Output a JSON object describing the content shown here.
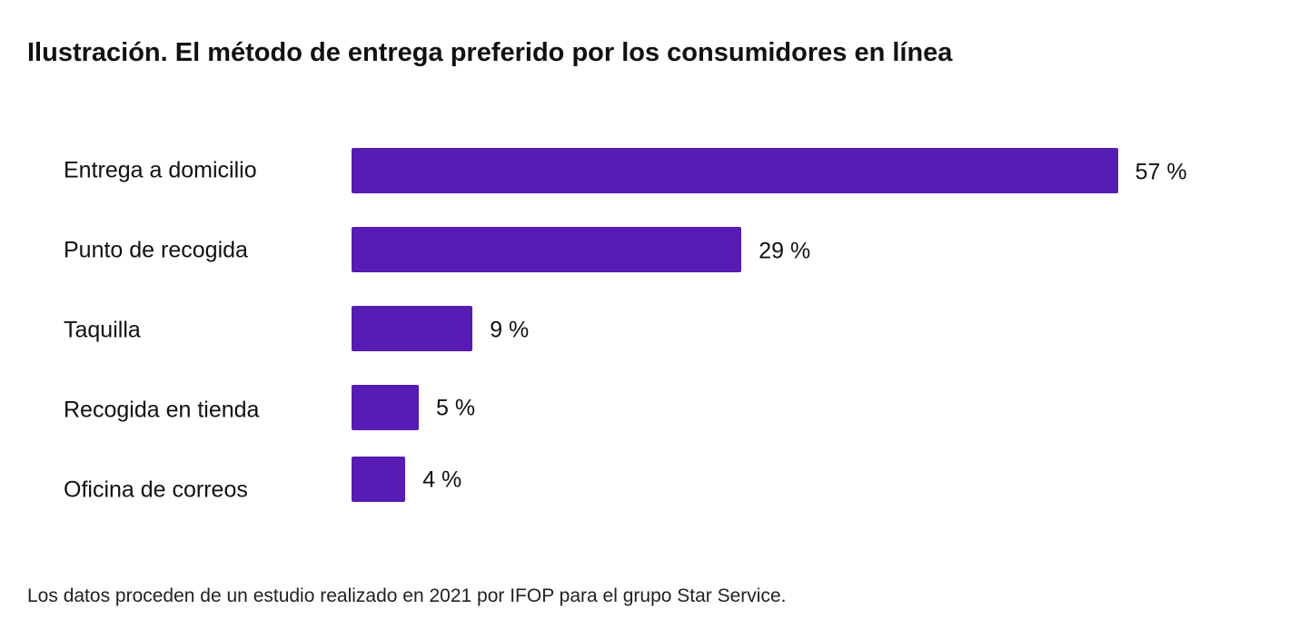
{
  "chart_data": {
    "type": "bar",
    "orientation": "horizontal",
    "title": "Ilustración. El método de entrega preferido por los consumidores en línea",
    "categories": [
      "Entrega a domicilio",
      "Punto de recogida",
      "Taquilla",
      "Recogida en tienda",
      "Oficina de correos"
    ],
    "values": [
      57,
      29,
      9,
      5,
      4
    ],
    "value_labels": [
      "57 %",
      "29 %",
      "9 %",
      "5 %",
      "4 %"
    ],
    "bar_color": "#561cb4",
    "grid": false,
    "source": "Los datos proceden de un estudio realizado en 2021 por IFOP para el grupo Star Service."
  }
}
